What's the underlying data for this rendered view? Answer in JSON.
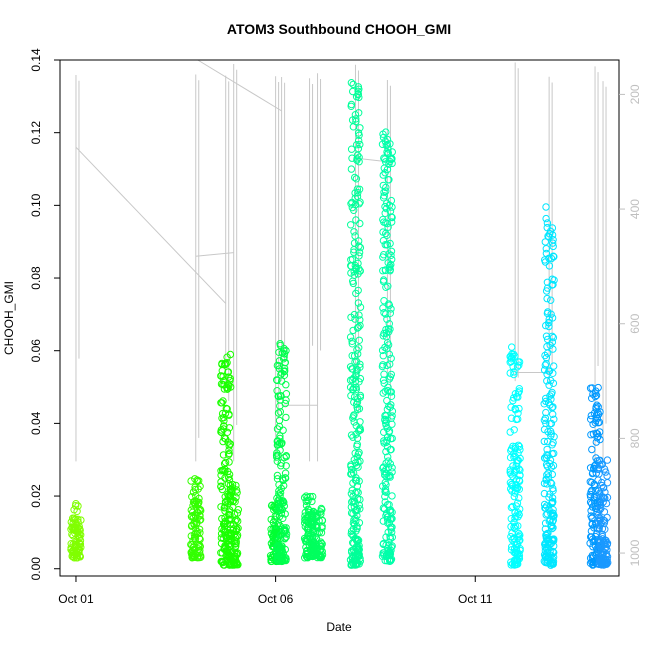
{
  "chart_data": {
    "type": "scatter",
    "title": "ATOM3 Southbound CHOOH_GMI",
    "xlabel": "Date",
    "ylabel": "CHOOH_GMI",
    "x_ticks": [
      "Oct 01",
      "Oct 06",
      "Oct 11"
    ],
    "x_range_days": [
      0.6,
      14.6
    ],
    "x_tick_days": [
      1,
      6,
      11
    ],
    "ylim": [
      -0.002,
      0.14
    ],
    "y_ticks": [
      0.0,
      0.02,
      0.04,
      0.06,
      0.08,
      0.1,
      0.12,
      0.14
    ],
    "right_axis": {
      "label": "",
      "reversed": true,
      "range": [
        1040,
        140
      ],
      "ticks": [
        200,
        400,
        600,
        800,
        1000
      ],
      "color": "#bfbfbf"
    },
    "grid": false,
    "series": [
      {
        "day": 1.0,
        "ymin": 0.003,
        "ymax": 0.018,
        "color": "#80ff00"
      },
      {
        "day": 4.0,
        "ymin": 0.003,
        "ymax": 0.025,
        "color": "#33ff00"
      },
      {
        "day": 4.75,
        "ymin": 0.001,
        "ymax": 0.06,
        "color": "#1aff00"
      },
      {
        "day": 4.95,
        "ymin": 0.001,
        "ymax": 0.024,
        "color": "#1aff00"
      },
      {
        "day": 6.0,
        "ymin": 0.002,
        "ymax": 0.019,
        "color": "#00ff33"
      },
      {
        "day": 6.15,
        "ymin": 0.002,
        "ymax": 0.063,
        "color": "#00ff4d"
      },
      {
        "day": 6.85,
        "ymin": 0.003,
        "ymax": 0.02,
        "color": "#00ff59"
      },
      {
        "day": 7.05,
        "ymin": 0.003,
        "ymax": 0.017,
        "color": "#00ff5e"
      },
      {
        "day": 8.0,
        "ymin": 0.001,
        "ymax": 0.136,
        "color": "#00ff99"
      },
      {
        "day": 8.8,
        "ymin": 0.002,
        "ymax": 0.121,
        "color": "#00ffaa"
      },
      {
        "day": 12.0,
        "ymin": 0.001,
        "ymax": 0.061,
        "color": "#00ffff"
      },
      {
        "day": 12.85,
        "ymin": 0.001,
        "ymax": 0.1,
        "color": "#00e6ff"
      },
      {
        "day": 14.0,
        "ymin": 0.001,
        "ymax": 0.05,
        "color": "#0099ff"
      },
      {
        "day": 14.2,
        "ymin": 0.001,
        "ymax": 0.031,
        "color": "#1a99ff"
      }
    ],
    "pressure_trace_color": "#c8c8c8"
  }
}
